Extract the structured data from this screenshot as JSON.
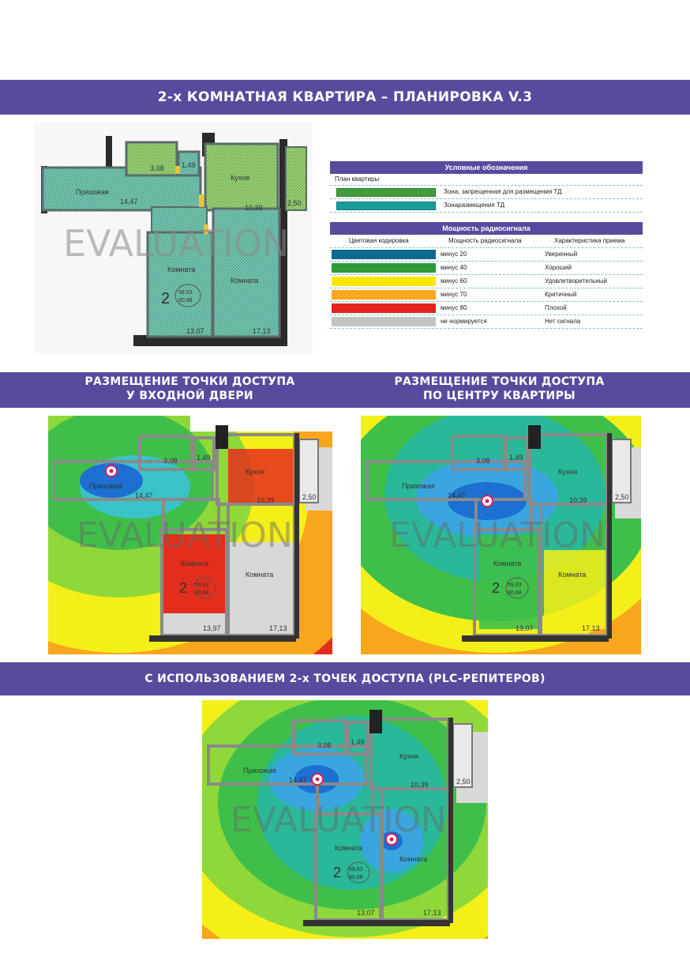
{
  "banners": {
    "title": "2-х КОМНАТНАЯ КВАРТИРА – ПЛАНИРОВКА V.3",
    "left_line1": "РАЗМЕЩЕНИЕ ТОЧКИ ДОСТУПА",
    "left_line2": "У ВХОДНОЙ ДВЕРИ",
    "right_line1": "РАЗМЕЩЕНИЕ ТОЧКИ ДОСТУПА",
    "right_line2": "ПО ЦЕНТРУ КВАРТИРЫ",
    "bottom": "С ИСПОЛЬЗОВАНИЕМ 2-х ТОЧЕК ДОСТУПА (PLC-РЕПИТЕРОВ)"
  },
  "plan": {
    "watermark": "EVALUATION",
    "hallway": "Прихожая",
    "kitchen": "Кухня",
    "room": "Комната",
    "area_hall": "14,47",
    "area_bath": "3,08",
    "area_wc": "1,49",
    "area_kitchen": "10,39",
    "area_balcony": "2,50",
    "area_room1": "13,07",
    "area_room1_alt": "13,97",
    "area_room2": "17,13",
    "rooms_count": "2",
    "total1": "59,63",
    "total2": "60,88"
  },
  "legend": {
    "title": "Условные обозначения",
    "plan_label": "План квартиры",
    "forbidden": "Зона, запрещенная для размещения ТД",
    "placement": "Зонаразмещения ТД",
    "power_title": "Мощность радиосигнала",
    "col_color": "Цветовая кодировка",
    "col_power": "Мощность радиосигнала",
    "col_quality": "Характеристика приема",
    "rows": [
      {
        "color": "#0b6a8e",
        "power": "минус 20",
        "quality": "Уверенный"
      },
      {
        "color": "#2e9a3a",
        "power": "минус 40",
        "quality": "Хороший"
      },
      {
        "color": "#f7e800",
        "power": "минус 60",
        "quality": "Удовлетворительный"
      },
      {
        "color": "#f8a81c",
        "power": "минус 70",
        "quality": "Критичный"
      },
      {
        "color": "#e3231f",
        "power": "минус 80",
        "quality": "Плохой"
      },
      {
        "color": "#c4c4c4",
        "power": "не нормируется",
        "quality": "Нет сигнала"
      }
    ],
    "forbidden_color": "#3f9e3a",
    "placement_color": "#1a9b9b"
  }
}
